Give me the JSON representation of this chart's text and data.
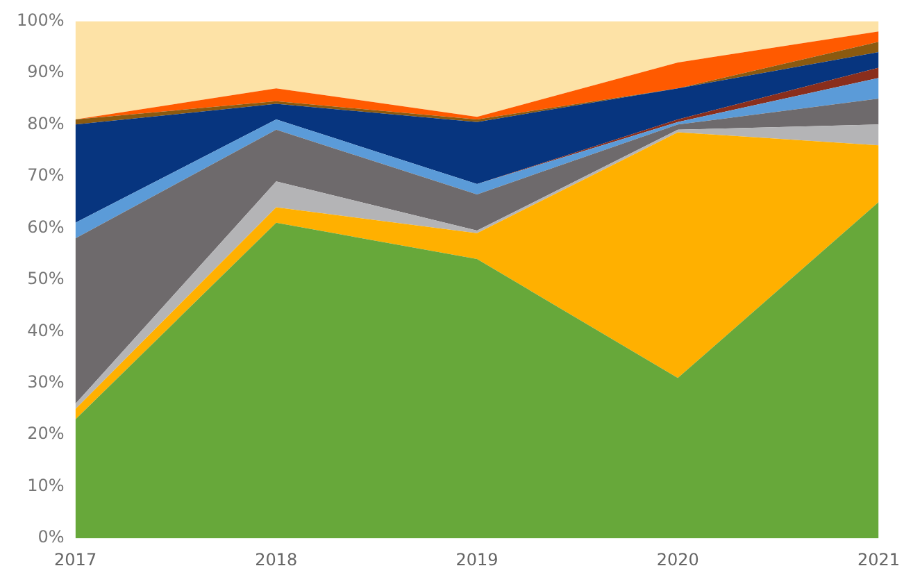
{
  "chart_data": {
    "type": "area",
    "stacked": true,
    "categories": [
      "2017",
      "2018",
      "2019",
      "2020",
      "2021"
    ],
    "series": [
      {
        "color": "#67a83a",
        "values": [
          23,
          61,
          54,
          31,
          65
        ]
      },
      {
        "color": "#ffb000",
        "values": [
          2,
          3,
          5,
          47.5,
          11
        ]
      },
      {
        "color": "#b4b4b6",
        "values": [
          1,
          5,
          0.5,
          0.5,
          4
        ]
      },
      {
        "color": "#6e6a6c",
        "values": [
          32,
          10,
          7,
          1,
          5
        ]
      },
      {
        "color": "#5b9bd8",
        "values": [
          3,
          2,
          2,
          0.5,
          4
        ]
      },
      {
        "color": "#8a2e1c",
        "values": [
          0,
          0,
          0,
          0.5,
          2
        ]
      },
      {
        "color": "#07357f",
        "values": [
          19,
          3,
          12,
          6,
          3
        ]
      },
      {
        "color": "#8b5a10",
        "values": [
          1,
          0.5,
          0.5,
          0,
          2
        ]
      },
      {
        "color": "#ff5a00",
        "values": [
          0,
          2.5,
          0.5,
          5,
          2
        ]
      },
      {
        "color": "#fde2a6",
        "values": [
          19,
          13,
          18.5,
          8,
          2
        ]
      }
    ],
    "ylim": [
      0,
      100
    ],
    "yticks": [
      {
        "value": 0,
        "label": "0%"
      },
      {
        "value": 10,
        "label": "10%"
      },
      {
        "value": 20,
        "label": "20%"
      },
      {
        "value": 30,
        "label": "30%"
      },
      {
        "value": 40,
        "label": "40%"
      },
      {
        "value": 50,
        "label": "50%"
      },
      {
        "value": 60,
        "label": "60%"
      },
      {
        "value": 70,
        "label": "70%"
      },
      {
        "value": 80,
        "label": "80%"
      },
      {
        "value": 90,
        "label": "90%"
      },
      {
        "value": 100,
        "label": "100%"
      }
    ],
    "grid": false,
    "legend": false
  }
}
